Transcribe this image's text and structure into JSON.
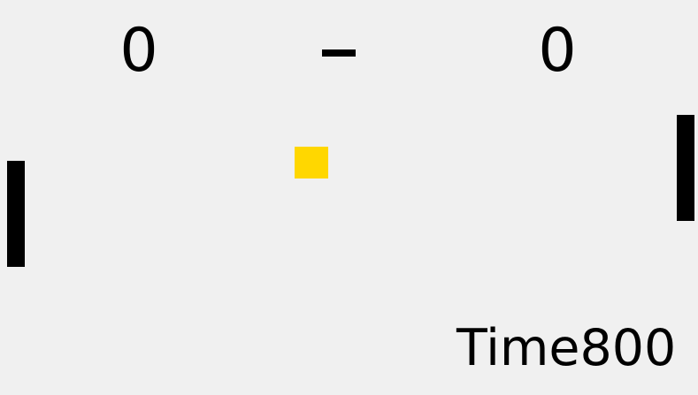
{
  "scoreboard": {
    "left_score": "0",
    "right_score": "0"
  },
  "timer": {
    "label": "Time",
    "value": "800"
  },
  "colors": {
    "background": "#f0f0f0",
    "paddle": "#000000",
    "ball": "#ffd700",
    "text": "#000000"
  }
}
